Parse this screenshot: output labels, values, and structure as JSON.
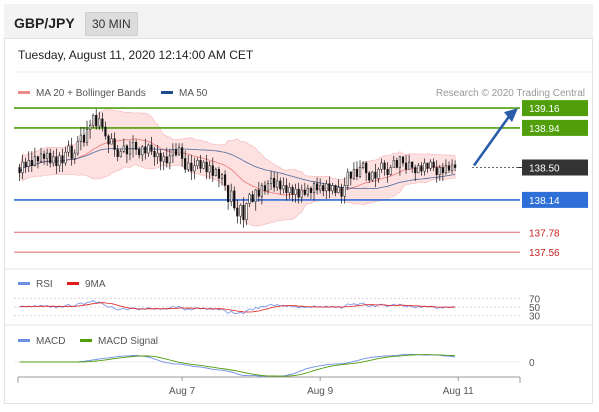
{
  "header": {
    "pair": "GBP/JPY",
    "timeframe": "30 MIN",
    "datetime": "Tuesday, August 11, 2020 12:14:00 AM CET"
  },
  "legend": {
    "ma20": "MA 20 + Bollinger Bands",
    "ma50": "MA 50",
    "credit": "Research © 2020 Trading Central"
  },
  "colors": {
    "resistance": "#4f9e0a",
    "support": "#2f6fd8",
    "extra_support": "#e06666",
    "ma20": "#ef8a8a",
    "ma50": "#1f4a8c",
    "bollinger_fill": "#fde0e0",
    "pivot": "#333333",
    "arrow": "#2a5da8",
    "rsi": "#6f8ee8",
    "rsi_9ma": "#e21b1b",
    "macd": "#6f8ee8",
    "macd_signal": "#4f9e0a"
  },
  "chart_data": [
    {
      "type": "candlestick",
      "panel": "price",
      "levels": [
        {
          "value": 139.16,
          "label": "139.16",
          "kind": "resistance"
        },
        {
          "value": 138.94,
          "label": "138.94",
          "kind": "resistance"
        },
        {
          "value": 138.5,
          "label": "138.50",
          "kind": "pivot"
        },
        {
          "value": 138.14,
          "label": "138.14",
          "kind": "support"
        },
        {
          "value": 137.78,
          "label": "137.78",
          "kind": "extra_support"
        },
        {
          "value": 137.56,
          "label": "137.56",
          "kind": "extra_support"
        }
      ],
      "x_ticks": [
        {
          "label": "Aug 7",
          "index": 53
        },
        {
          "label": "Aug 9",
          "index": 98
        },
        {
          "label": "Aug 11",
          "index": 143
        }
      ],
      "x_count": 148,
      "y_range": [
        137.45,
        139.25
      ],
      "candles": [
        [
          138.5,
          138.44,
          138.54,
          138.35
        ],
        [
          138.44,
          138.56,
          138.64,
          138.37
        ],
        [
          138.56,
          138.51,
          138.61,
          138.44
        ],
        [
          138.51,
          138.58,
          138.68,
          138.45
        ],
        [
          138.58,
          138.52,
          138.68,
          138.45
        ],
        [
          138.52,
          138.62,
          138.72,
          138.51
        ],
        [
          138.62,
          138.57,
          138.63,
          138.49
        ],
        [
          138.57,
          138.65,
          138.72,
          138.55
        ],
        [
          138.65,
          138.6,
          138.69,
          138.53
        ],
        [
          138.6,
          138.66,
          138.71,
          138.52
        ],
        [
          138.66,
          138.55,
          138.71,
          138.5
        ],
        [
          138.55,
          138.62,
          138.69,
          138.51
        ],
        [
          138.62,
          138.52,
          138.71,
          138.43
        ],
        [
          138.52,
          138.63,
          138.67,
          138.45
        ],
        [
          138.63,
          138.55,
          138.71,
          138.45
        ],
        [
          138.55,
          138.67,
          138.73,
          138.52
        ],
        [
          138.67,
          138.74,
          138.8,
          138.62
        ],
        [
          138.74,
          138.6,
          138.83,
          138.52
        ],
        [
          138.6,
          138.66,
          138.7,
          138.54
        ],
        [
          138.66,
          138.79,
          138.85,
          138.63
        ],
        [
          138.79,
          138.86,
          138.95,
          138.69
        ],
        [
          138.86,
          138.78,
          138.95,
          138.73
        ],
        [
          138.78,
          138.92,
          139.02,
          138.74
        ],
        [
          138.92,
          138.97,
          139.03,
          138.82
        ],
        [
          138.97,
          139.08,
          139.1,
          138.94
        ],
        [
          139.08,
          138.96,
          139.15,
          138.92
        ],
        [
          138.96,
          139.04,
          139.12,
          138.92
        ],
        [
          139.04,
          138.95,
          139.11,
          138.9
        ],
        [
          138.95,
          138.85,
          139.01,
          138.81
        ],
        [
          138.85,
          138.76,
          138.87,
          138.66
        ],
        [
          138.76,
          138.82,
          138.88,
          138.76
        ],
        [
          138.82,
          138.7,
          138.89,
          138.62
        ],
        [
          138.7,
          138.62,
          138.75,
          138.57
        ],
        [
          138.62,
          138.68,
          138.71,
          138.61
        ],
        [
          138.68,
          138.74,
          138.82,
          138.66
        ],
        [
          138.74,
          138.65,
          138.76,
          138.55
        ],
        [
          138.65,
          138.71,
          138.8,
          138.58
        ],
        [
          138.71,
          138.78,
          138.86,
          138.61
        ],
        [
          138.78,
          138.7,
          138.81,
          138.64
        ],
        [
          138.7,
          138.64,
          138.73,
          138.6
        ],
        [
          138.64,
          138.73,
          138.75,
          138.57
        ],
        [
          138.73,
          138.66,
          138.82,
          138.59
        ],
        [
          138.66,
          138.75,
          138.77,
          138.62
        ],
        [
          138.75,
          138.68,
          138.84,
          138.64
        ],
        [
          138.68,
          138.62,
          138.73,
          138.52
        ],
        [
          138.62,
          138.66,
          138.75,
          138.54
        ],
        [
          138.66,
          138.57,
          138.7,
          138.47
        ],
        [
          138.57,
          138.62,
          138.67,
          138.47
        ],
        [
          138.62,
          138.55,
          138.72,
          138.5
        ],
        [
          138.55,
          138.63,
          138.71,
          138.48
        ],
        [
          138.63,
          138.7,
          138.77,
          138.55
        ],
        [
          138.7,
          138.64,
          138.77,
          138.62
        ],
        [
          138.64,
          138.72,
          138.77,
          138.63
        ],
        [
          138.72,
          138.6,
          138.77,
          138.51
        ],
        [
          138.6,
          138.48,
          138.69,
          138.44
        ],
        [
          138.48,
          138.55,
          138.64,
          138.45
        ],
        [
          138.55,
          138.46,
          138.64,
          138.36
        ],
        [
          138.46,
          138.52,
          138.61,
          138.37
        ],
        [
          138.52,
          138.58,
          138.61,
          138.48
        ],
        [
          138.58,
          138.49,
          138.64,
          138.44
        ],
        [
          138.49,
          138.56,
          138.58,
          138.48
        ],
        [
          138.56,
          138.45,
          138.64,
          138.37
        ],
        [
          138.45,
          138.52,
          138.57,
          138.37
        ],
        [
          138.52,
          138.41,
          138.61,
          138.34
        ],
        [
          138.41,
          138.48,
          138.5,
          138.4
        ],
        [
          138.48,
          138.38,
          138.51,
          138.28
        ],
        [
          138.38,
          138.42,
          138.44,
          138.3
        ],
        [
          138.42,
          138.3,
          138.47,
          138.24
        ],
        [
          138.3,
          138.12,
          138.31,
          138.03
        ],
        [
          138.12,
          138.24,
          138.32,
          138.07
        ],
        [
          138.24,
          138.05,
          138.29,
          138.02
        ],
        [
          138.05,
          137.96,
          138.14,
          137.88
        ],
        [
          137.96,
          138.08,
          138.1,
          137.87
        ],
        [
          138.08,
          137.92,
          138.17,
          137.83
        ],
        [
          137.92,
          138.1,
          138.11,
          137.86
        ],
        [
          138.1,
          138.2,
          138.22,
          138.06
        ],
        [
          138.2,
          138.12,
          138.24,
          138.11
        ],
        [
          138.12,
          138.25,
          138.26,
          138.02
        ],
        [
          138.25,
          138.18,
          138.34,
          138.12
        ],
        [
          138.18,
          138.3,
          138.33,
          138.09
        ],
        [
          138.3,
          138.24,
          138.35,
          138.2
        ],
        [
          138.24,
          138.32,
          138.36,
          138.2
        ],
        [
          138.32,
          138.38,
          138.46,
          138.25
        ],
        [
          138.38,
          138.28,
          138.45,
          138.23
        ],
        [
          138.28,
          138.35,
          138.44,
          138.24
        ],
        [
          138.35,
          138.26,
          138.39,
          138.2
        ],
        [
          138.26,
          138.3,
          138.39,
          138.21
        ],
        [
          138.3,
          138.22,
          138.38,
          138.13
        ],
        [
          138.22,
          138.28,
          138.33,
          138.15
        ],
        [
          138.28,
          138.2,
          138.31,
          138.12
        ],
        [
          138.2,
          138.26,
          138.32,
          138.11
        ],
        [
          138.26,
          138.17,
          138.33,
          138.1
        ],
        [
          138.17,
          138.25,
          138.31,
          138.11
        ],
        [
          138.25,
          138.2,
          138.33,
          138.18
        ],
        [
          138.2,
          138.27,
          138.31,
          138.17
        ],
        [
          138.27,
          138.22,
          138.29,
          138.15
        ],
        [
          138.22,
          138.32,
          138.34,
          138.13
        ],
        [
          138.32,
          138.25,
          138.39,
          138.2
        ],
        [
          138.25,
          138.3,
          138.38,
          138.21
        ],
        [
          138.3,
          138.24,
          138.33,
          138.18
        ],
        [
          138.24,
          138.32,
          138.36,
          138.15
        ],
        [
          138.32,
          138.24,
          138.4,
          138.16
        ],
        [
          138.24,
          138.3,
          138.33,
          138.2
        ],
        [
          138.3,
          138.22,
          138.31,
          138.18
        ],
        [
          138.22,
          138.28,
          138.37,
          138.21
        ],
        [
          138.28,
          138.18,
          138.32,
          138.1
        ],
        [
          138.18,
          138.3,
          138.39,
          138.1
        ],
        [
          138.3,
          138.45,
          138.49,
          138.25
        ],
        [
          138.45,
          138.38,
          138.46,
          138.3
        ],
        [
          138.38,
          138.48,
          138.56,
          138.36
        ],
        [
          138.48,
          138.4,
          138.57,
          138.36
        ],
        [
          138.4,
          138.5,
          138.58,
          138.38
        ],
        [
          138.5,
          138.55,
          138.57,
          138.48
        ],
        [
          138.55,
          138.44,
          138.57,
          138.35
        ],
        [
          138.44,
          138.36,
          138.46,
          138.33
        ],
        [
          138.36,
          138.45,
          138.46,
          138.34
        ],
        [
          138.45,
          138.38,
          138.54,
          138.28
        ],
        [
          138.38,
          138.48,
          138.5,
          138.33
        ],
        [
          138.48,
          138.55,
          138.6,
          138.44
        ],
        [
          138.55,
          138.48,
          138.58,
          138.41
        ],
        [
          138.48,
          138.42,
          138.56,
          138.33
        ],
        [
          138.42,
          138.5,
          138.53,
          138.41
        ],
        [
          138.5,
          138.58,
          138.63,
          138.55
        ],
        [
          138.58,
          138.5,
          138.61,
          138.49
        ],
        [
          138.5,
          138.62,
          138.63,
          138.41
        ],
        [
          138.62,
          138.55,
          138.62,
          138.51
        ],
        [
          138.55,
          138.48,
          138.64,
          138.43
        ],
        [
          138.48,
          138.56,
          138.64,
          138.48
        ],
        [
          138.56,
          138.5,
          138.57,
          138.44
        ],
        [
          138.5,
          138.44,
          138.53,
          138.35
        ],
        [
          138.44,
          138.52,
          138.55,
          138.44
        ],
        [
          138.52,
          138.46,
          138.56,
          138.41
        ],
        [
          138.46,
          138.55,
          138.6,
          138.41
        ],
        [
          138.55,
          138.49,
          138.55,
          138.44
        ],
        [
          138.49,
          138.56,
          138.59,
          138.46
        ],
        [
          138.56,
          138.5,
          138.6,
          138.46
        ],
        [
          138.5,
          138.42,
          138.58,
          138.33
        ],
        [
          138.42,
          138.5,
          138.53,
          138.35
        ],
        [
          138.5,
          138.44,
          138.55,
          138.35
        ],
        [
          138.44,
          138.52,
          138.59,
          138.42
        ],
        [
          138.52,
          138.47,
          138.57,
          138.44
        ],
        [
          138.47,
          138.53,
          138.59,
          138.43
        ],
        [
          138.53,
          138.5,
          138.58,
          138.46
        ]
      ],
      "forecast_arrow": {
        "from": 138.5,
        "to": 139.16
      }
    },
    {
      "type": "line",
      "panel": "rsi",
      "series_names": [
        "RSI",
        "9MA"
      ],
      "y_ticks": [
        {
          "value": 70,
          "label": "70"
        },
        {
          "value": 50,
          "label": "50"
        },
        {
          "value": 30,
          "label": "30"
        }
      ],
      "y_range": [
        20,
        80
      ]
    },
    {
      "type": "line",
      "panel": "macd",
      "series_names": [
        "MACD",
        "MACD Signal"
      ],
      "y_ticks": [
        {
          "value": 0,
          "label": "0"
        }
      ]
    }
  ]
}
